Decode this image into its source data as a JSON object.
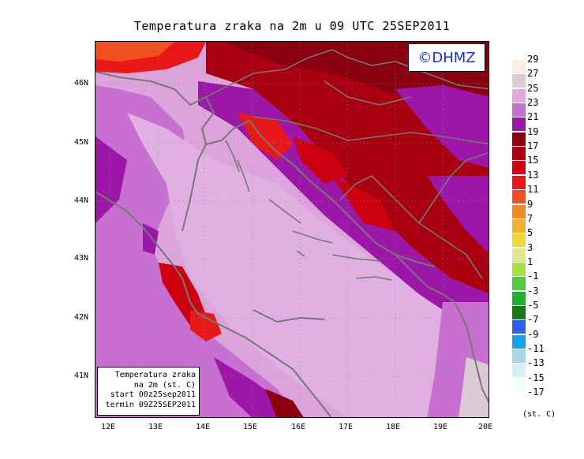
{
  "title": "Temperatura zraka na 2m u 09 UTC 25SEP2011",
  "logo": "©DHMZ",
  "info_box": [
    "Temperatura zraka",
    "na 2m (st. C)",
    "start 00z25sep2011",
    "termin 09Z25SEP2011"
  ],
  "y_axis_labels": [
    "46N",
    "45N",
    "44N",
    "43N",
    "42N",
    "41N"
  ],
  "x_axis_labels": [
    "12E",
    "13E",
    "14E",
    "15E",
    "16E",
    "17E",
    "18E",
    "19E",
    "20E"
  ],
  "legend_unit": "(st. C)",
  "legend_levels": [
    "29",
    "27",
    "25",
    "23",
    "21",
    "19",
    "17",
    "15",
    "13",
    "11",
    "9",
    "7",
    "5",
    "3",
    "1",
    "-1",
    "-3",
    "-5",
    "-7",
    "-9",
    "-11",
    "-13",
    "-15",
    "-17"
  ],
  "legend_colors": [
    "#fbeee0",
    "#dccad6",
    "#e2a8e0",
    "#c870d2",
    "#9c16a8",
    "#8a0010",
    "#a80010",
    "#cc0010",
    "#e81818",
    "#f05020",
    "#f08828",
    "#f0b030",
    "#ecd838",
    "#e0e888",
    "#a8e040",
    "#50cc40",
    "#20b030",
    "#18781a",
    "#3060e8",
    "#18a0e8",
    "#a8d8e8",
    "#d8f0f4",
    "#f2fcfc"
  ],
  "colors": {
    "sea": "#dca4da",
    "coast": "#777777",
    "logo_text": "#1a2fd6"
  }
}
